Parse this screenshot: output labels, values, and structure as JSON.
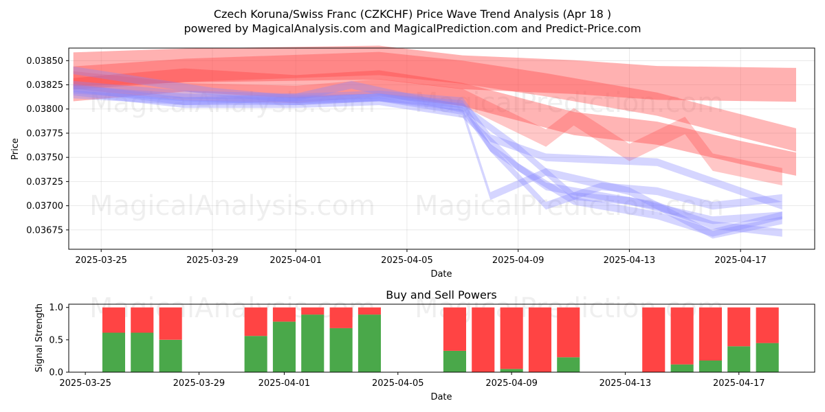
{
  "chart_data": [
    {
      "type": "area",
      "title_line1": "Czech Koruna/Swiss Franc (CZKCHF) Price Wave Trend Analysis (Apr 18 )",
      "title_line2": "powered by MagicalAnalysis.com and MagicalPrediction.com and Predict-Price.com",
      "xlabel": "Date",
      "ylabel": "Price",
      "xlim": [
        "2025-03-23T20:00",
        "2025-04-19T16:00"
      ],
      "ylim": [
        0.03655,
        0.03863
      ],
      "yticks": [
        0.03675,
        0.037,
        0.03725,
        0.0375,
        0.03775,
        0.038,
        0.03825,
        0.0385
      ],
      "ytick_labels": [
        "0.03675",
        "0.03700",
        "0.03725",
        "0.03750",
        "0.03775",
        "0.03800",
        "0.03825",
        "0.03850"
      ],
      "xticks": [
        "2025-03-25",
        "2025-03-29",
        "2025-04-01",
        "2025-04-05",
        "2025-04-09",
        "2025-04-13",
        "2025-04-17"
      ],
      "grid": true,
      "series": [
        {
          "color": "#ff4444",
          "width": 0.00035,
          "alpha": 0.42,
          "x": [
            "2025-03-24",
            "2025-03-28",
            "2025-04-04",
            "2025-04-07",
            "2025-04-11",
            "2025-04-14",
            "2025-04-19"
          ],
          "y": [
            0.03841,
            0.03845,
            0.03848,
            0.03838,
            0.03833,
            0.03827,
            0.03825
          ]
        },
        {
          "color": "#ff4444",
          "width": 0.00024,
          "alpha": 0.38,
          "x": [
            "2025-03-24",
            "2025-03-28",
            "2025-04-04",
            "2025-04-07",
            "2025-04-10",
            "2025-04-14",
            "2025-04-16",
            "2025-04-19"
          ],
          "y": [
            0.03832,
            0.0384,
            0.03847,
            0.03838,
            0.03825,
            0.03805,
            0.0379,
            0.03768
          ]
        },
        {
          "color": "#ff4444",
          "width": 0.00024,
          "alpha": 0.4,
          "x": [
            "2025-03-24",
            "2025-03-28",
            "2025-04-01",
            "2025-04-04",
            "2025-04-07",
            "2025-04-09",
            "2025-04-11",
            "2025-04-14",
            "2025-04-17",
            "2025-04-19"
          ],
          "y": [
            0.0382,
            0.0383,
            0.03823,
            0.03828,
            0.03815,
            0.038,
            0.03785,
            0.03775,
            0.03755,
            0.03743
          ]
        },
        {
          "color": "#ff4444",
          "width": 0.00018,
          "alpha": 0.3,
          "x": [
            "2025-03-24",
            "2025-03-28",
            "2025-04-01",
            "2025-04-04",
            "2025-04-07",
            "2025-04-10",
            "2025-04-11",
            "2025-04-13",
            "2025-04-15",
            "2025-04-16",
            "2025-04-18.5"
          ],
          "y": [
            0.0383,
            0.03818,
            0.03815,
            0.03822,
            0.03812,
            0.0377,
            0.03792,
            0.03755,
            0.03783,
            0.03745,
            0.0373
          ]
        },
        {
          "color": "#8888ff",
          "width": 8e-05,
          "alpha": 0.35,
          "x": [
            "2025-03-24",
            "2025-03-28",
            "2025-04-01",
            "2025-04-04",
            "2025-04-07",
            "2025-04-08",
            "2025-04-10",
            "2025-04-14",
            "2025-04-16",
            "2025-04-18.5"
          ],
          "y": [
            0.03825,
            0.03815,
            0.03812,
            0.03815,
            0.03808,
            0.0377,
            0.0375,
            0.03745,
            0.03725,
            0.037
          ]
        },
        {
          "color": "#8888ff",
          "width": 8e-05,
          "alpha": 0.35,
          "x": [
            "2025-03-24",
            "2025-03-29",
            "2025-04-01",
            "2025-04-04",
            "2025-04-07",
            "2025-04-08",
            "2025-04-10",
            "2025-04-12",
            "2025-04-14",
            "2025-04-16",
            "2025-04-18.5"
          ],
          "y": [
            0.0384,
            0.03818,
            0.0381,
            0.03812,
            0.03805,
            0.0376,
            0.037,
            0.0372,
            0.03715,
            0.037,
            0.03708
          ]
        },
        {
          "color": "#8888ff",
          "width": 8e-05,
          "alpha": 0.35,
          "x": [
            "2025-03-24",
            "2025-03-28",
            "2025-04-01",
            "2025-04-04",
            "2025-04-07",
            "2025-04-09",
            "2025-04-11",
            "2025-04-13",
            "2025-04-16",
            "2025-04-18.5"
          ],
          "y": [
            0.0382,
            0.03812,
            0.03808,
            0.03812,
            0.03802,
            0.0376,
            0.0371,
            0.03705,
            0.03685,
            0.0369
          ]
        },
        {
          "color": "#8888ff",
          "width": 8e-05,
          "alpha": 0.35,
          "x": [
            "2025-03-24",
            "2025-03-28",
            "2025-04-01",
            "2025-04-03",
            "2025-04-07",
            "2025-04-08",
            "2025-04-10",
            "2025-04-14",
            "2025-04-16",
            "2025-04-18.5"
          ],
          "y": [
            0.03815,
            0.03808,
            0.03812,
            0.03825,
            0.038,
            0.0376,
            0.0372,
            0.037,
            0.0368,
            0.03672
          ]
        },
        {
          "color": "#8888ff",
          "width": 8e-05,
          "alpha": 0.35,
          "x": [
            "2025-03-24",
            "2025-03-28",
            "2025-04-01",
            "2025-04-04",
            "2025-04-07",
            "2025-04-08",
            "2025-04-10",
            "2025-04-13",
            "2025-04-16",
            "2025-04-18.5"
          ],
          "y": [
            0.03822,
            0.03808,
            0.03808,
            0.03812,
            0.03798,
            0.0371,
            0.03735,
            0.03715,
            0.0367,
            0.03685
          ]
        },
        {
          "color": "#8888ff",
          "width": 8e-05,
          "alpha": 0.35,
          "x": [
            "2025-03-24",
            "2025-03-28",
            "2025-04-01",
            "2025-04-04",
            "2025-04-07",
            "2025-04-09",
            "2025-04-11",
            "2025-04-14",
            "2025-04-16",
            "2025-04-18.5"
          ],
          "y": [
            0.03818,
            0.03805,
            0.03805,
            0.03808,
            0.03795,
            0.0374,
            0.03705,
            0.0369,
            0.03672,
            0.0369
          ]
        }
      ]
    },
    {
      "type": "bar",
      "title": "Buy and Sell Powers",
      "xlabel": "Date",
      "ylabel": "Signal Strength",
      "xlim": [
        "2025-03-24T10:00",
        "2025-04-19T16:00"
      ],
      "ylim": [
        0,
        1.05
      ],
      "yticks": [
        0,
        0.5,
        1
      ],
      "ytick_labels": [
        "0.0",
        "0.5",
        "1.0"
      ],
      "xticks": [
        "2025-03-25",
        "2025-03-29",
        "2025-04-01",
        "2025-04-05",
        "2025-04-09",
        "2025-04-13",
        "2025-04-17"
      ],
      "buy_color": "#4aa84a",
      "sell_color": "#ff4444",
      "dates": [
        "2025-03-26",
        "2025-03-27",
        "2025-03-28",
        "2025-03-31",
        "2025-04-01",
        "2025-04-02",
        "2025-04-03",
        "2025-04-04",
        "2025-04-07",
        "2025-04-08",
        "2025-04-09",
        "2025-04-10",
        "2025-04-11",
        "2025-04-14",
        "2025-04-15",
        "2025-04-16",
        "2025-04-17",
        "2025-04-18"
      ],
      "buy": [
        0.61,
        0.61,
        0.5,
        0.56,
        0.78,
        0.89,
        0.68,
        0.89,
        0.33,
        0.0,
        0.05,
        0.0,
        0.23,
        0.0,
        0.12,
        0.18,
        0.4,
        0.45
      ],
      "sell": [
        0.39,
        0.39,
        0.5,
        0.44,
        0.22,
        0.11,
        0.32,
        0.11,
        0.67,
        1.0,
        0.95,
        1.0,
        0.77,
        1.0,
        0.88,
        0.82,
        0.6,
        0.55
      ]
    }
  ]
}
